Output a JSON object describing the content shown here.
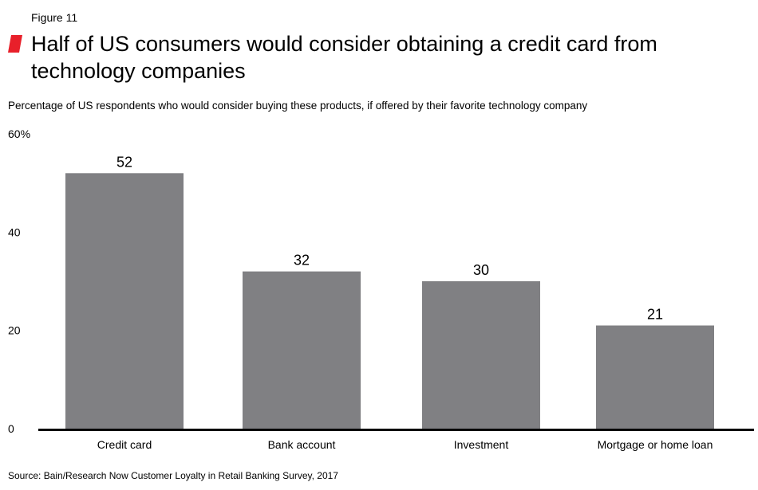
{
  "figure_label": "Figure 11",
  "title": "Half of US consumers would consider obtaining a credit card from technology companies",
  "subtitle": "Percentage of US respondents who would consider buying these products, if offered by their favorite technology company",
  "source": "Source: Bain/Research Now Customer Loyalty in Retail Banking Survey, 2017",
  "colors": {
    "bar": "#808083",
    "accent": "#e8202a",
    "axis": "#000000"
  },
  "chart_data": {
    "type": "bar",
    "categories": [
      "Credit card",
      "Bank account",
      "Investment",
      "Mortgage or home loan"
    ],
    "values": [
      52,
      32,
      30,
      21
    ],
    "data_labels": [
      "52",
      "32",
      "30",
      "21"
    ],
    "ylim": [
      0,
      60
    ],
    "yticks": [
      0,
      20,
      40,
      60
    ],
    "ytick_labels": [
      "0",
      "20",
      "40",
      "60%"
    ],
    "grid": false
  }
}
